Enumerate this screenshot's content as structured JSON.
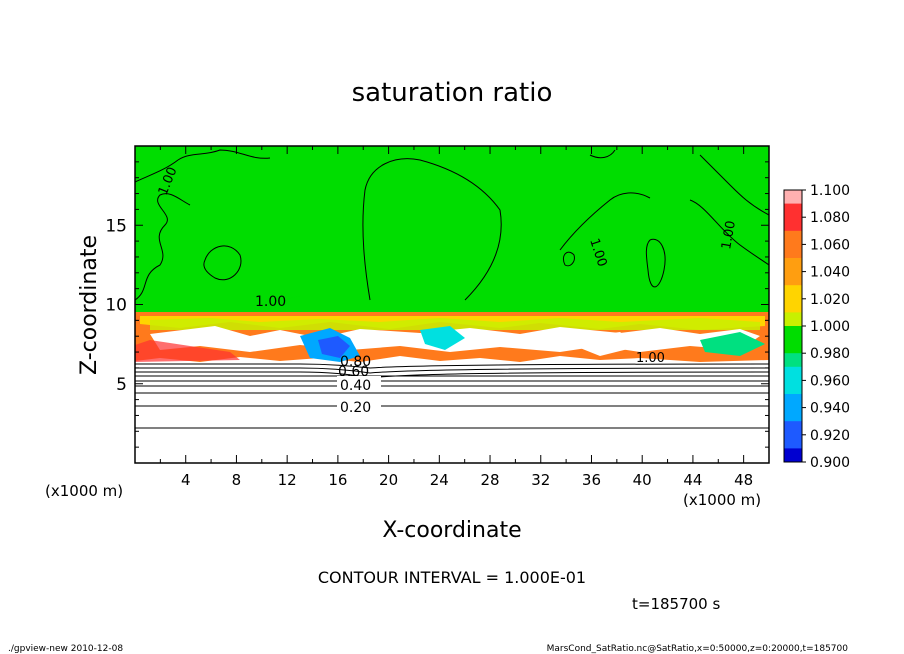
{
  "chart_data": {
    "type": "heatmap",
    "title": "saturation ratio",
    "xlabel": "X-coordinate",
    "ylabel": "Z-coordinate",
    "x_unit": "(x1000 m)",
    "z_unit": "(x1000 m)",
    "xlim": [
      0,
      50
    ],
    "ylim": [
      0,
      20
    ],
    "x_ticks": [
      "4",
      "8",
      "12",
      "16",
      "20",
      "24",
      "28",
      "32",
      "36",
      "40",
      "44",
      "48"
    ],
    "y_ticks": [
      "5",
      "10",
      "15"
    ],
    "contour_interval_text": "CONTOUR INTERVAL = 1.000E-01",
    "time_text": "t=185700 s",
    "contour_labels": [
      "0.20",
      "0.40",
      "0.60",
      "0.80",
      "1.00",
      "1.00",
      "1.00",
      "1.00",
      "1.00"
    ],
    "colorbar": {
      "ticks": [
        "1.100",
        "1.080",
        "1.060",
        "1.040",
        "1.020",
        "1.000",
        "0.980",
        "0.960",
        "0.940",
        "0.920",
        "0.900"
      ],
      "colors": [
        "#ff3030",
        "#ff5a2a",
        "#ff7a1c",
        "#ff9e10",
        "#ffd400",
        "#c8f000",
        "#00dd00",
        "#00e080",
        "#00e0e0",
        "#00a8ff",
        "#1e5aff",
        "#0000d0",
        "#5a00a8",
        "#ffb0b0"
      ]
    },
    "regions": {
      "upper_value": 1.0,
      "layer_z_range": [
        6.5,
        10
      ],
      "lower_values": [
        0.1,
        0.2,
        0.3,
        0.4,
        0.5,
        0.6,
        0.7,
        0.8,
        0.9
      ]
    }
  },
  "footer": {
    "left": "./gpview-new  2010-12-08",
    "right": "MarsCond_SatRatio.nc@SatRatio,x=0:50000,z=0:20000,t=185700"
  }
}
